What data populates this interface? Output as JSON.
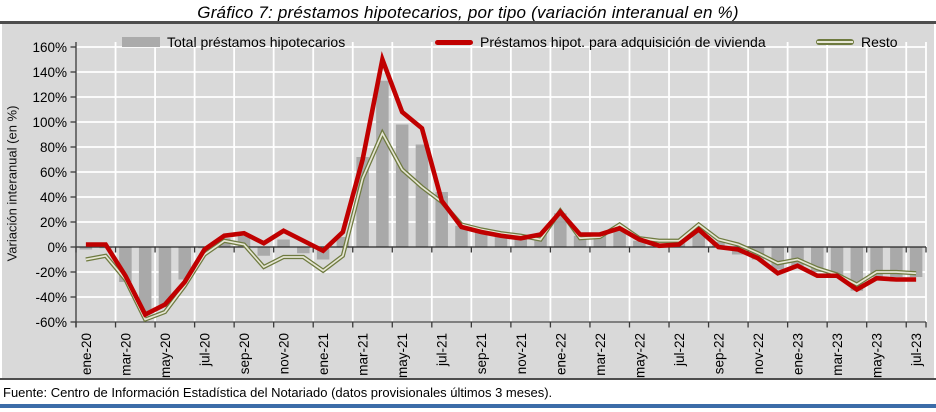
{
  "title": "Gráfico 7: préstamos hipotecarios, por tipo (variación interanual en %)",
  "y_axis_title": "Variación interanual (en %)",
  "footer": {
    "source": "Fuente: Centro de Información Estadística del Notariado (datos provisionales últimos 3 meses)."
  },
  "legend": {
    "items": [
      {
        "label": "Total préstamos hipotecarios",
        "type": "bar",
        "color": "#ababab"
      },
      {
        "label": "Préstamos hipot. para adquisición de vivienda",
        "type": "line",
        "color": "#c00000"
      },
      {
        "label": "Resto",
        "type": "line-double",
        "color": "#6e7a3f"
      }
    ]
  },
  "colors": {
    "chart_background": "#d9d9d9",
    "gridline": "#ffffff",
    "bar": "#a9a9a9",
    "line_vivienda": "#c00000",
    "line_resto_edge": "#6e7a3f",
    "line_resto_core": "#e6e6d5",
    "axis": "#3a3a3a",
    "rule_dark": "#4d4d4d",
    "rule_blue": "#3c6ca8"
  },
  "chart_data": {
    "type": "bar",
    "title": "Gráfico 7: préstamos hipotecarios, por tipo (variación interanual en %)",
    "xlabel": "",
    "ylabel": "Variación interanual (en %)",
    "ylim": [
      -60,
      160
    ],
    "ytick_step": 20,
    "y_tick_labels": [
      "160%",
      "140%",
      "120%",
      "100%",
      "80%",
      "60%",
      "40%",
      "20%",
      "0%",
      "-20%",
      "-40%",
      "-60%"
    ],
    "grid": true,
    "legend_position": "top",
    "x": [
      "ene-20",
      "feb-20",
      "mar-20",
      "abr-20",
      "may-20",
      "jun-20",
      "jul-20",
      "ago-20",
      "sep-20",
      "oct-20",
      "nov-20",
      "dic-20",
      "ene-21",
      "feb-21",
      "mar-21",
      "abr-21",
      "may-21",
      "jun-21",
      "jul-21",
      "ago-21",
      "sep-21",
      "oct-21",
      "nov-21",
      "dic-21",
      "ene-22",
      "feb-22",
      "mar-22",
      "abr-22",
      "may-22",
      "jun-22",
      "jul-22",
      "ago-22",
      "sep-22",
      "oct-22",
      "nov-22",
      "dic-22",
      "ene-23",
      "feb-23",
      "mar-23",
      "abr-23",
      "may-23",
      "jun-23",
      "jul-23"
    ],
    "x_label_every": 2,
    "series": [
      {
        "name": "Total préstamos hipotecarios",
        "type": "bar",
        "color": "#a9a9a9",
        "values": [
          -2,
          -1,
          -28,
          -52,
          -48,
          -26,
          -1,
          7,
          9,
          -7,
          6,
          -5,
          -10,
          8,
          72,
          133,
          98,
          82,
          44,
          17,
          15,
          10,
          7,
          10,
          27,
          9,
          10,
          15,
          5,
          2,
          3,
          15,
          4,
          -6,
          -10,
          -18,
          -15,
          -20,
          -23,
          -35,
          -24,
          -24,
          -24
        ]
      },
      {
        "name": "Préstamos hipot. para adquisición de vivienda",
        "type": "line",
        "color": "#c00000",
        "values": [
          2,
          2,
          -23,
          -54,
          -46,
          -28,
          -2,
          9,
          11,
          3,
          13,
          5,
          -3,
          12,
          70,
          150,
          108,
          95,
          37,
          16,
          12,
          9,
          7,
          10,
          28,
          10,
          10,
          15,
          6,
          1,
          2,
          14,
          0,
          -2,
          -9,
          -21,
          -15,
          -23,
          -23,
          -34,
          -25,
          -26,
          -26
        ]
      },
      {
        "name": "Resto",
        "type": "line",
        "color": "#6e7a3f",
        "values": [
          -10,
          -7,
          -26,
          -58,
          -52,
          -31,
          -6,
          5,
          2,
          -16,
          -8,
          -8,
          -19,
          -7,
          55,
          91,
          62,
          48,
          36,
          18,
          14,
          11,
          9,
          6,
          29,
          7,
          8,
          18,
          7,
          5,
          5,
          18,
          6,
          2,
          -5,
          -13,
          -10,
          -17,
          -22,
          -30,
          -20,
          -20,
          -21
        ]
      }
    ]
  }
}
